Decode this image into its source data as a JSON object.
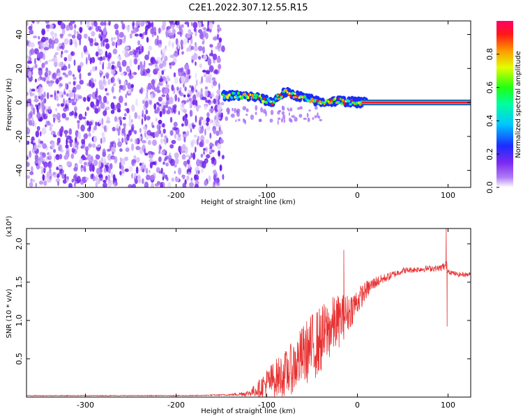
{
  "title": "C2E1.2022.307.12.55.R15",
  "chart_data": [
    {
      "type": "heatmap",
      "xlabel": "Height of straight line (km)",
      "ylabel": "Frequency (Hz)",
      "xlim": [
        -365,
        125
      ],
      "ylim": [
        -50,
        48
      ],
      "x_ticks": [
        -300,
        -200,
        -100,
        0,
        100
      ],
      "y_ticks": [
        -40,
        -20,
        0,
        20,
        40
      ],
      "colorbar": {
        "label": "Normalized spectral amplitude",
        "range": [
          0.0,
          1.0
        ],
        "ticks": [
          0.0,
          0.2,
          0.4,
          0.6,
          0.8
        ],
        "colors": [
          "#ffffff",
          "#8a3cf5",
          "#1a2cff",
          "#00e0ff",
          "#00ff40",
          "#ffff00",
          "#ff8000",
          "#ff0000",
          "#ff0060"
        ]
      },
      "signal_trace": [
        {
          "x": -150,
          "y": 4
        },
        {
          "x": -130,
          "y": 4
        },
        {
          "x": -110,
          "y": 3
        },
        {
          "x": -95,
          "y": 0
        },
        {
          "x": -80,
          "y": 6
        },
        {
          "x": -60,
          "y": 3
        },
        {
          "x": -40,
          "y": 0
        },
        {
          "x": -20,
          "y": 1
        },
        {
          "x": 0,
          "y": 0
        },
        {
          "x": 50,
          "y": 0
        },
        {
          "x": 125,
          "y": 0
        }
      ]
    },
    {
      "type": "line",
      "xlabel": "Height of straight line (km)",
      "ylabel": "SNR (10 * v/v)",
      "y_multiplier": "(x10⁴)",
      "xlim": [
        -365,
        125
      ],
      "ylim": [
        0,
        2.2
      ],
      "x_ticks": [
        -300,
        -200,
        -100,
        0,
        100
      ],
      "y_ticks": [
        0.5,
        1.0,
        1.5,
        2.0
      ],
      "line_color": "#e83030",
      "series": [
        {
          "x": [
            -365,
            -340,
            -300,
            -260,
            -220,
            -180,
            -140,
            -120,
            -110,
            -100,
            -90,
            -80,
            -70,
            -60,
            -50,
            -40,
            -30,
            -20,
            -10,
            0,
            10,
            20,
            30,
            40,
            50,
            60,
            70,
            80,
            90,
            95,
            98,
            100,
            105,
            110,
            125
          ],
          "y": [
            0.02,
            0.02,
            0.02,
            0.02,
            0.02,
            0.02,
            0.03,
            0.05,
            0.1,
            0.18,
            0.25,
            0.3,
            0.4,
            0.55,
            0.65,
            0.75,
            0.9,
            1.0,
            1.1,
            1.25,
            1.4,
            1.5,
            1.55,
            1.6,
            1.65,
            1.66,
            1.67,
            1.68,
            1.68,
            1.7,
            1.72,
            1.65,
            1.62,
            1.6,
            1.6
          ],
          "noise": [
            0.005,
            0.005,
            0.005,
            0.005,
            0.005,
            0.005,
            0.01,
            0.04,
            0.1,
            0.2,
            0.25,
            0.3,
            0.35,
            0.4,
            0.45,
            0.45,
            0.4,
            0.35,
            0.25,
            0.18,
            0.12,
            0.08,
            0.06,
            0.05,
            0.04,
            0.04,
            0.04,
            0.04,
            0.04,
            0.06,
            0.08,
            0.04,
            0.03,
            0.03,
            0.03
          ]
        }
      ],
      "spikes": [
        {
          "x": -15,
          "y": 1.92
        },
        {
          "x": 98,
          "y": 2.2
        },
        {
          "x": 99,
          "y": 0.92
        }
      ]
    }
  ]
}
